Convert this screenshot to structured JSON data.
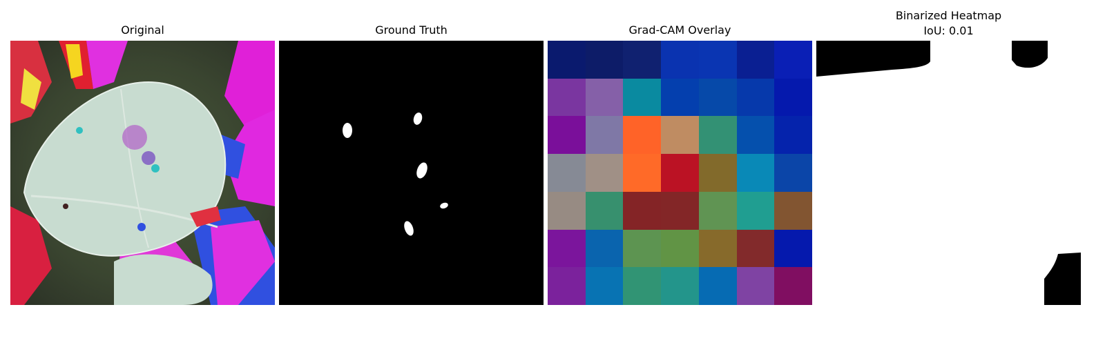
{
  "panels": [
    {
      "title": "Original"
    },
    {
      "title": "Ground Truth"
    },
    {
      "title": "Grad-CAM Overlay"
    },
    {
      "title": "Binarized Heatmap",
      "subtitle": "IoU: 0.01"
    }
  ],
  "gradcam_grid": [
    [
      "#0a1a6e",
      "#0d1c68",
      "#102170",
      "#0a33b0",
      "#0a35b2",
      "#0a1f92",
      "#0a1fb5"
    ],
    [
      "#7a36a0",
      "#8560a8",
      "#0a8aa0",
      "#043fae",
      "#0649a9",
      "#0639ab",
      "#0519ad"
    ],
    [
      "#7a0f9a",
      "#7f78a6",
      "#ff6328",
      "#bf8c62",
      "#339174",
      "#0550ad",
      "#0523ac"
    ],
    [
      "#868a95",
      "#a09086",
      "#ff6a28",
      "#bb1224",
      "#826a2b",
      "#0989b7",
      "#0b45a8"
    ],
    [
      "#978b83",
      "#37906e",
      "#842426",
      "#832627",
      "#609453",
      "#209e91",
      "#825531"
    ],
    [
      "#7b159c",
      "#0a64ae",
      "#5d9451",
      "#619445",
      "#876a2b",
      "#822a2b",
      "#0519ad"
    ],
    [
      "#7b229c",
      "#0873b3",
      "#319474",
      "#23958b",
      "#066bb3",
      "#7f43a3",
      "#800e61"
    ]
  ]
}
